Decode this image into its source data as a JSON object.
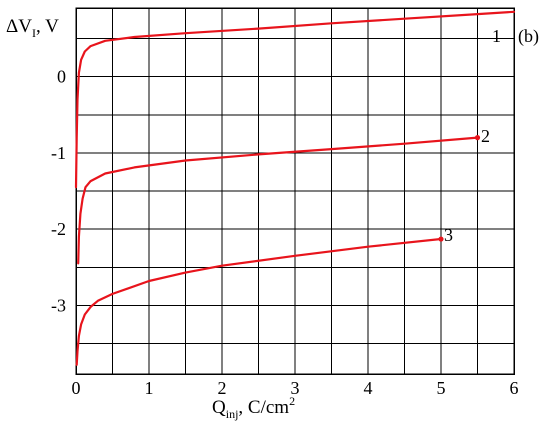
{
  "chart_data": {
    "type": "line",
    "panel_label": "(b)",
    "x_axis_title": {
      "main": "Q",
      "sub": "inj",
      "unit": ", C/cm",
      "sup": "2"
    },
    "y_axis_title": {
      "main": "ΔV",
      "sub": "I",
      "unit": ", V"
    },
    "xlim": [
      0,
      6
    ],
    "ylim": [
      -3.9,
      0.9
    ],
    "x_ticks": [
      0,
      1,
      2,
      3,
      4,
      5,
      6
    ],
    "x_tick_labels": [
      "0",
      "1",
      "2",
      "3",
      "4",
      "5",
      "6"
    ],
    "y_ticks": [
      0,
      -1,
      -2,
      -3
    ],
    "y_tick_labels": [
      "0",
      "-1",
      "-2",
      "-3"
    ],
    "x_grid": [
      0,
      0.5,
      1,
      1.5,
      2,
      2.5,
      3,
      3.5,
      4,
      4.5,
      5,
      5.5,
      6
    ],
    "y_grid": [
      -3.5,
      -3,
      -2.5,
      -2,
      -1.5,
      -1,
      -0.5,
      0,
      0.5
    ],
    "grid": true,
    "line_color": "#e8141c",
    "series": [
      {
        "label": "1",
        "end_marker": false,
        "points": [
          [
            0.0,
            -1.45
          ],
          [
            0.01,
            -0.8
          ],
          [
            0.02,
            -0.3
          ],
          [
            0.04,
            0.05
          ],
          [
            0.07,
            0.22
          ],
          [
            0.12,
            0.33
          ],
          [
            0.2,
            0.4
          ],
          [
            0.4,
            0.47
          ],
          [
            0.8,
            0.52
          ],
          [
            1.5,
            0.57
          ],
          [
            2.5,
            0.63
          ],
          [
            3.5,
            0.7
          ],
          [
            4.5,
            0.76
          ],
          [
            5.5,
            0.82
          ],
          [
            6.0,
            0.85
          ]
        ]
      },
      {
        "label": "2",
        "end_marker": true,
        "points": [
          [
            0.03,
            -2.45
          ],
          [
            0.04,
            -2.1
          ],
          [
            0.06,
            -1.8
          ],
          [
            0.09,
            -1.6
          ],
          [
            0.13,
            -1.45
          ],
          [
            0.2,
            -1.37
          ],
          [
            0.4,
            -1.27
          ],
          [
            0.8,
            -1.19
          ],
          [
            1.5,
            -1.1
          ],
          [
            2.5,
            -1.02
          ],
          [
            3.5,
            -0.95
          ],
          [
            4.5,
            -0.88
          ],
          [
            5.5,
            -0.8
          ]
        ]
      },
      {
        "label": "3",
        "end_marker": true,
        "points": [
          [
            0.01,
            -3.78
          ],
          [
            0.02,
            -3.6
          ],
          [
            0.04,
            -3.4
          ],
          [
            0.07,
            -3.25
          ],
          [
            0.12,
            -3.12
          ],
          [
            0.2,
            -3.02
          ],
          [
            0.3,
            -2.94
          ],
          [
            0.5,
            -2.85
          ],
          [
            1.0,
            -2.68
          ],
          [
            1.5,
            -2.57
          ],
          [
            2.0,
            -2.48
          ],
          [
            3.0,
            -2.35
          ],
          [
            4.0,
            -2.23
          ],
          [
            5.0,
            -2.13
          ]
        ]
      }
    ]
  }
}
